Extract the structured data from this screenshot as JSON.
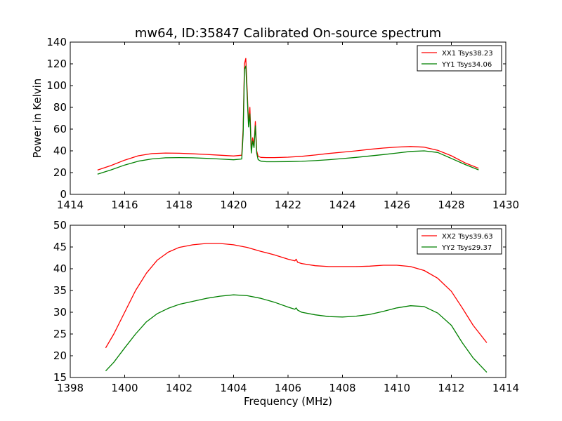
{
  "figure": {
    "title": "mw64, ID:35847 Calibrated On-source spectrum",
    "xlabel": "Frequency (MHz)"
  },
  "chart_data": [
    {
      "type": "line",
      "title": "mw64, ID:35847 Calibrated On-source spectrum",
      "xlabel": "",
      "ylabel": "Power in Kelvin",
      "xlim": [
        1414,
        1430
      ],
      "ylim": [
        0,
        140
      ],
      "xticks": [
        "1414",
        "1416",
        "1418",
        "1420",
        "1422",
        "1424",
        "1426",
        "1428",
        "1430"
      ],
      "yticks": [
        "0",
        "20",
        "40",
        "60",
        "80",
        "100",
        "120",
        "140"
      ],
      "grid": false,
      "legend_position": "top-right",
      "series": [
        {
          "name": "XX1 Tsys38.23",
          "color": "#ff0000",
          "x": [
            1415.0,
            1415.5,
            1416.0,
            1416.5,
            1417.0,
            1417.5,
            1418.0,
            1418.5,
            1419.0,
            1419.5,
            1420.0,
            1420.3,
            1420.35,
            1420.4,
            1420.45,
            1420.5,
            1420.55,
            1420.6,
            1420.65,
            1420.7,
            1420.75,
            1420.8,
            1420.85,
            1420.9,
            1421.0,
            1421.2,
            1421.5,
            1422.0,
            1422.5,
            1423.0,
            1423.5,
            1424.0,
            1424.5,
            1425.0,
            1425.5,
            1426.0,
            1426.5,
            1427.0,
            1427.5,
            1428.0,
            1428.5,
            1429.0
          ],
          "y": [
            22.3,
            26.5,
            31.5,
            35.5,
            37.5,
            38.0,
            37.8,
            37.3,
            36.7,
            36.0,
            35.3,
            36.0,
            60.0,
            120.0,
            125.0,
            95.0,
            65.0,
            80.0,
            40.0,
            52.0,
            45.0,
            67.0,
            40.0,
            35.0,
            34.0,
            33.8,
            33.8,
            34.2,
            35.0,
            36.2,
            37.6,
            38.8,
            40.0,
            41.4,
            42.6,
            43.5,
            44.0,
            43.4,
            40.5,
            35.5,
            29.0,
            24.0
          ]
        },
        {
          "name": "YY1 Tsys34.06",
          "color": "#008000",
          "x": [
            1415.0,
            1415.5,
            1416.0,
            1416.5,
            1417.0,
            1417.5,
            1418.0,
            1418.5,
            1419.0,
            1419.5,
            1420.0,
            1420.3,
            1420.35,
            1420.4,
            1420.45,
            1420.5,
            1420.55,
            1420.6,
            1420.65,
            1420.7,
            1420.75,
            1420.8,
            1420.85,
            1420.9,
            1421.0,
            1421.2,
            1421.5,
            1422.0,
            1422.5,
            1423.0,
            1423.5,
            1424.0,
            1424.5,
            1425.0,
            1425.5,
            1426.0,
            1426.5,
            1427.0,
            1427.5,
            1428.0,
            1428.5,
            1429.0
          ],
          "y": [
            18.5,
            22.5,
            27.0,
            30.5,
            32.6,
            33.6,
            33.8,
            33.6,
            33.1,
            32.5,
            31.8,
            32.5,
            55.0,
            115.0,
            118.0,
            90.0,
            62.0,
            74.0,
            38.0,
            49.0,
            43.0,
            63.0,
            38.0,
            32.0,
            30.5,
            30.0,
            30.0,
            30.1,
            30.4,
            31.0,
            31.9,
            32.9,
            34.0,
            35.3,
            36.6,
            38.0,
            39.5,
            40.0,
            38.5,
            33.0,
            27.5,
            22.5
          ]
        }
      ]
    },
    {
      "type": "line",
      "title": "",
      "xlabel": "Frequency (MHz)",
      "ylabel": "",
      "xlim": [
        1398,
        1414
      ],
      "ylim": [
        15,
        50
      ],
      "xticks": [
        "1398",
        "1400",
        "1402",
        "1404",
        "1406",
        "1408",
        "1410",
        "1412",
        "1414"
      ],
      "yticks": [
        "15",
        "20",
        "25",
        "30",
        "35",
        "40",
        "45",
        "50"
      ],
      "grid": false,
      "legend_position": "top-right",
      "series": [
        {
          "name": "XX2 Tsys39.63",
          "color": "#ff0000",
          "x": [
            1399.3,
            1399.6,
            1400.0,
            1400.4,
            1400.8,
            1401.2,
            1401.6,
            1402.0,
            1402.5,
            1403.0,
            1403.5,
            1404.0,
            1404.5,
            1405.0,
            1405.5,
            1406.0,
            1406.25,
            1406.3,
            1406.35,
            1406.5,
            1407.0,
            1407.5,
            1408.0,
            1408.5,
            1409.0,
            1409.5,
            1410.0,
            1410.5,
            1411.0,
            1411.5,
            1412.0,
            1412.4,
            1412.8,
            1413.3
          ],
          "y": [
            21.8,
            25.0,
            30.0,
            35.0,
            39.0,
            42.0,
            43.8,
            44.9,
            45.5,
            45.8,
            45.8,
            45.5,
            44.9,
            44.0,
            43.2,
            42.2,
            41.8,
            42.2,
            41.5,
            41.2,
            40.7,
            40.5,
            40.5,
            40.5,
            40.6,
            40.8,
            40.8,
            40.5,
            39.6,
            37.8,
            34.8,
            31.0,
            27.0,
            23.0
          ]
        },
        {
          "name": "YY2 Tsys29.37",
          "color": "#008000",
          "x": [
            1399.3,
            1399.6,
            1400.0,
            1400.4,
            1400.8,
            1401.2,
            1401.6,
            1402.0,
            1402.5,
            1403.0,
            1403.5,
            1404.0,
            1404.5,
            1405.0,
            1405.5,
            1406.0,
            1406.25,
            1406.3,
            1406.35,
            1406.5,
            1407.0,
            1407.5,
            1408.0,
            1408.5,
            1409.0,
            1409.5,
            1410.0,
            1410.5,
            1411.0,
            1411.5,
            1412.0,
            1412.4,
            1412.8,
            1413.3
          ],
          "y": [
            16.5,
            18.5,
            21.8,
            25.0,
            27.8,
            29.7,
            30.9,
            31.8,
            32.5,
            33.2,
            33.7,
            34.0,
            33.8,
            33.2,
            32.3,
            31.2,
            30.7,
            31.0,
            30.5,
            30.0,
            29.4,
            29.0,
            28.9,
            29.1,
            29.5,
            30.2,
            31.0,
            31.5,
            31.3,
            29.8,
            27.0,
            23.0,
            19.5,
            16.2
          ]
        }
      ]
    }
  ]
}
